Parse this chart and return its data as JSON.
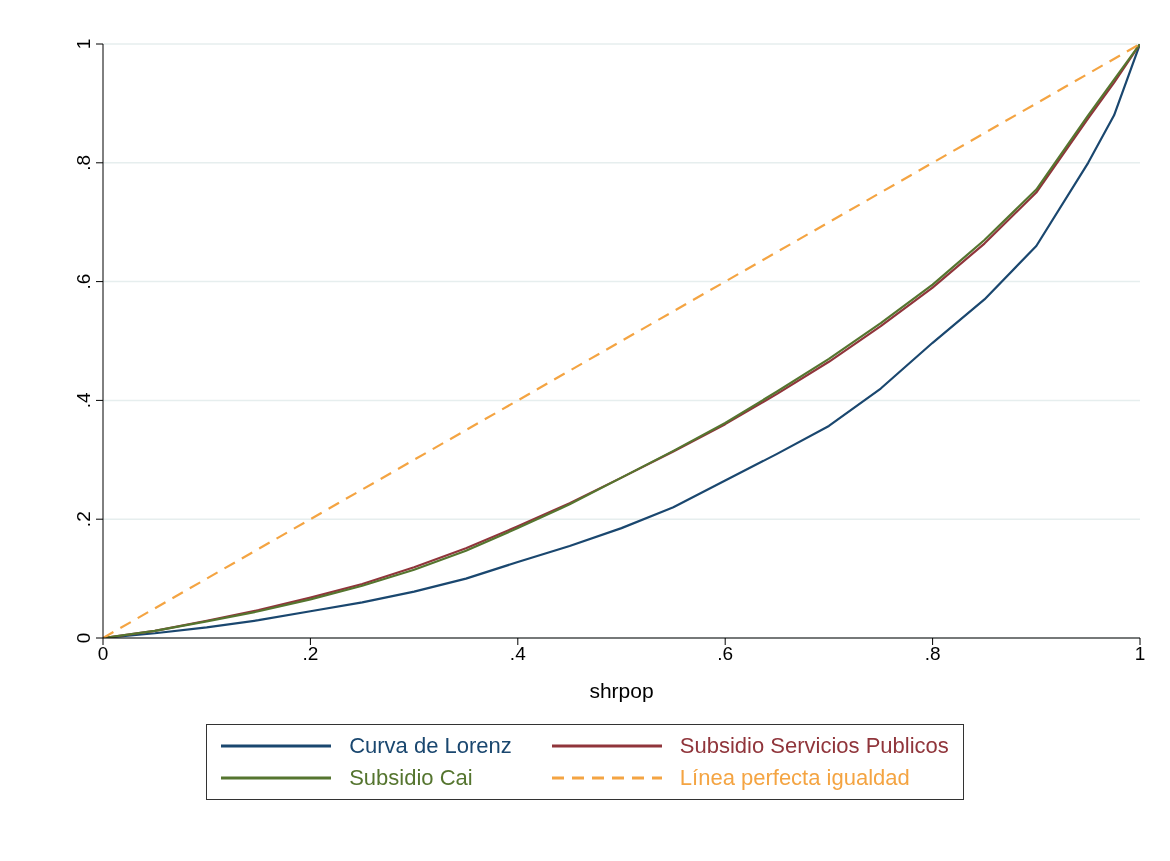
{
  "chart_data": {
    "type": "line",
    "xlabel": "shrpop",
    "xlim": [
      0,
      1
    ],
    "xticks": [
      {
        "value": 0,
        "label": "0"
      },
      {
        "value": 0.2,
        "label": ".2"
      },
      {
        "value": 0.4,
        "label": ".4"
      },
      {
        "value": 0.6,
        "label": ".6"
      },
      {
        "value": 0.8,
        "label": ".8"
      },
      {
        "value": 1,
        "label": "1"
      }
    ],
    "ylim": [
      0,
      1
    ],
    "yticks": [
      {
        "value": 0,
        "label": "0"
      },
      {
        "value": 0.2,
        "label": ".2"
      },
      {
        "value": 0.4,
        "label": ".4"
      },
      {
        "value": 0.6,
        "label": ".6"
      },
      {
        "value": 0.8,
        "label": ".8"
      },
      {
        "value": 1,
        "label": "1"
      }
    ],
    "grid": "y",
    "legend": "bottom",
    "marker": "none",
    "x": [
      0,
      0.05,
      0.1,
      0.15,
      0.2,
      0.25,
      0.3,
      0.35,
      0.4,
      0.45,
      0.5,
      0.55,
      0.6,
      0.65,
      0.7,
      0.75,
      0.8,
      0.85,
      0.9,
      0.95,
      0.975,
      1
    ],
    "series": [
      {
        "name": "Curva de Lorenz",
        "color": "#1a476f",
        "values": [
          0,
          0.008,
          0.018,
          0.03,
          0.045,
          0.06,
          0.078,
          0.1,
          0.128,
          0.155,
          0.185,
          0.22,
          0.265,
          0.31,
          0.357,
          0.42,
          0.497,
          0.57,
          0.66,
          0.8,
          0.88,
          1
        ]
      },
      {
        "name": "Subsidio Servicios Publicos",
        "color": "#90353b",
        "values": [
          0,
          0.012,
          0.029,
          0.047,
          0.068,
          0.091,
          0.119,
          0.151,
          0.188,
          0.227,
          0.27,
          0.314,
          0.36,
          0.411,
          0.465,
          0.525,
          0.59,
          0.664,
          0.75,
          0.875,
          0.935,
          1
        ]
      },
      {
        "name": "Subsidio Cai",
        "color": "#55752f",
        "values": [
          0,
          0.012,
          0.028,
          0.045,
          0.065,
          0.088,
          0.115,
          0.147,
          0.185,
          0.225,
          0.27,
          0.315,
          0.362,
          0.415,
          0.47,
          0.53,
          0.595,
          0.67,
          0.755,
          0.88,
          0.94,
          1
        ]
      },
      {
        "name": "Línea perfecta igualdad",
        "color": "#f4a442",
        "line_style": "dashed",
        "x": [
          0,
          1
        ],
        "values": [
          0,
          1
        ]
      }
    ]
  }
}
